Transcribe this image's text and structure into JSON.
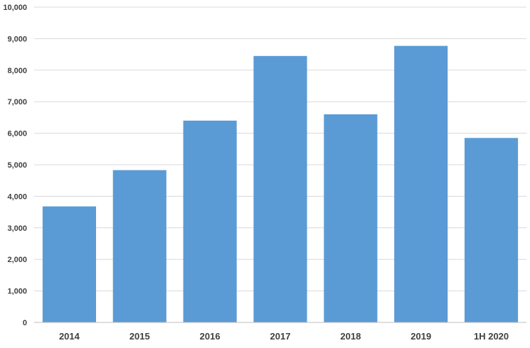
{
  "chart_data": {
    "type": "bar",
    "categories": [
      "2014",
      "2015",
      "2016",
      "2017",
      "2018",
      "2019",
      "1H 2020"
    ],
    "values": [
      3680,
      4830,
      6400,
      8450,
      6600,
      8770,
      5850
    ],
    "title": "",
    "xlabel": "",
    "ylabel": "",
    "ylim": [
      0,
      10000
    ],
    "yticks": [
      0,
      1000,
      2000,
      3000,
      4000,
      5000,
      6000,
      7000,
      8000,
      9000,
      10000
    ],
    "ytick_labels": [
      "0",
      "1,000",
      "2,000",
      "3,000",
      "4,000",
      "5,000",
      "6,000",
      "7,000",
      "8,000",
      "9,000",
      "10,000"
    ],
    "grid": true,
    "legend": "none",
    "colors": {
      "bar": "#5b9bd5",
      "grid": "#d9d9d9",
      "text": "#404040"
    }
  }
}
